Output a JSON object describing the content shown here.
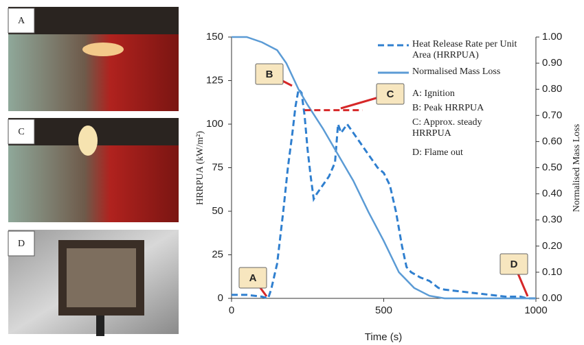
{
  "photo_labels": [
    "A",
    "C",
    "D"
  ],
  "chart_data": {
    "type": "line",
    "x_label": "Time (s)",
    "y_label": "HRRPUA (kW/m²)",
    "y2_label": "Normalised Mass Loss",
    "xlim": [
      0,
      1000
    ],
    "xticks": [
      0,
      500,
      1000
    ],
    "ylim": [
      0,
      150
    ],
    "yticks": [
      0,
      25,
      50,
      75,
      100,
      125,
      150
    ],
    "y2lim": [
      0,
      1
    ],
    "y2ticks": [
      {
        "value": 0,
        "label": "0.00"
      },
      {
        "value": 0.1,
        "label": "0.10"
      },
      {
        "value": 0.2,
        "label": "0.20"
      },
      {
        "value": 0.3,
        "label": "0.30"
      },
      {
        "value": 0.4,
        "label": "0.40"
      },
      {
        "value": 0.5,
        "label": "0.50"
      },
      {
        "value": 0.6,
        "label": "0.60"
      },
      {
        "value": 0.7,
        "label": "0.70"
      },
      {
        "value": 0.8,
        "label": "0.80"
      },
      {
        "value": 0.9,
        "label": "0.90"
      },
      {
        "value": 1,
        "label": "1.00"
      }
    ],
    "series": [
      {
        "name": "Heat Release Rate per Unit Area (HRRPUA)",
        "color": "#2f7fcf",
        "dashed": true,
        "x": [
          0,
          50,
          100,
          120,
          130,
          150,
          170,
          185,
          200,
          210,
          220,
          230,
          240,
          250,
          260,
          270,
          280,
          300,
          320,
          340,
          350,
          360,
          380,
          400,
          420,
          440,
          460,
          480,
          500,
          520,
          540,
          560,
          575,
          590,
          620,
          650,
          680,
          700,
          750,
          800,
          850,
          900,
          950,
          970,
          1000
        ],
        "values": [
          2,
          2,
          1,
          0,
          5,
          20,
          50,
          75,
          95,
          110,
          120,
          118,
          105,
          85,
          70,
          57,
          60,
          65,
          70,
          78,
          100,
          95,
          100,
          95,
          90,
          85,
          80,
          75,
          72,
          65,
          50,
          30,
          18,
          15,
          12,
          10,
          6,
          5,
          4,
          3,
          2,
          1,
          1,
          0,
          0
        ]
      },
      {
        "name": "Normalised Mass Loss",
        "color": "#5b9bd5",
        "dashed": false,
        "axis": "y2",
        "x": [
          0,
          50,
          100,
          150,
          180,
          200,
          220,
          250,
          300,
          350,
          400,
          450,
          500,
          550,
          600,
          650,
          700,
          1000
        ],
        "values": [
          1,
          1,
          0.98,
          0.95,
          0.9,
          0.85,
          0.8,
          0.74,
          0.65,
          0.55,
          0.45,
          0.33,
          0.22,
          0.1,
          0.04,
          0.01,
          0,
          0
        ]
      }
    ],
    "reference_line": {
      "x": [
        240,
        430
      ],
      "y": 108,
      "color": "#d62728"
    },
    "callouts": [
      "A",
      "B",
      "C",
      "D"
    ],
    "notes": [
      "A: Ignition",
      "B: Peak HRRPUA",
      "C: Approx. steady HRRPUA",
      "D: Flame out"
    ]
  }
}
